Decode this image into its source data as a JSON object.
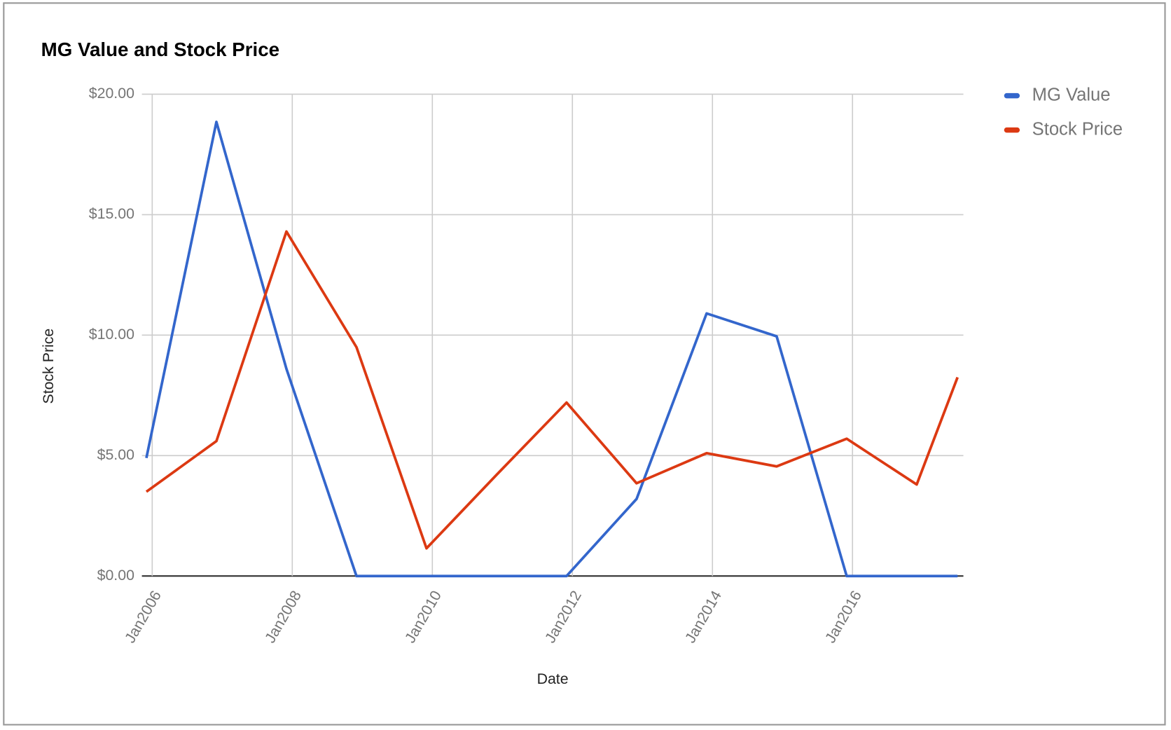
{
  "chart_data": {
    "type": "line",
    "title": "MG Value and Stock Price",
    "x_label": "Date",
    "y_label": "Stock Price",
    "x": [
      "2005-12",
      "2006-12",
      "2007-12",
      "2008-12",
      "2009-12",
      "2010-12",
      "2011-12",
      "2012-12",
      "2013-12",
      "2014-12",
      "2015-12",
      "2016-12",
      "2017-07"
    ],
    "series": [
      {
        "name": "MG Value",
        "color": "#3366cc",
        "values": [
          4.9,
          18.85,
          8.6,
          0,
          0,
          0,
          0,
          3.2,
          10.9,
          9.95,
          0,
          0,
          0
        ]
      },
      {
        "name": "Stock Price",
        "color": "#dc3912",
        "values": [
          3.5,
          5.6,
          14.3,
          9.5,
          1.15,
          4.2,
          7.2,
          3.85,
          5.1,
          4.55,
          5.7,
          3.8,
          8.25
        ]
      }
    ],
    "xlim": [
      "2005-12",
      "2017-08"
    ],
    "xticks": [
      {
        "value": "2006-01",
        "label": "Jan2006"
      },
      {
        "value": "2008-01",
        "label": "Jan2008"
      },
      {
        "value": "2010-01",
        "label": "Jan2010"
      },
      {
        "value": "2012-01",
        "label": "Jan2012"
      },
      {
        "value": "2014-01",
        "label": "Jan2014"
      },
      {
        "value": "2016-01",
        "label": "Jan2016"
      }
    ],
    "ylim": [
      0,
      20
    ],
    "yticks": [
      {
        "value": 0,
        "label": "$0.00"
      },
      {
        "value": 5,
        "label": "$5.00"
      },
      {
        "value": 10,
        "label": "$10.00"
      },
      {
        "value": 15,
        "label": "$15.00"
      },
      {
        "value": 20,
        "label": "$20.00"
      }
    ],
    "grid": true,
    "legend": "right"
  }
}
